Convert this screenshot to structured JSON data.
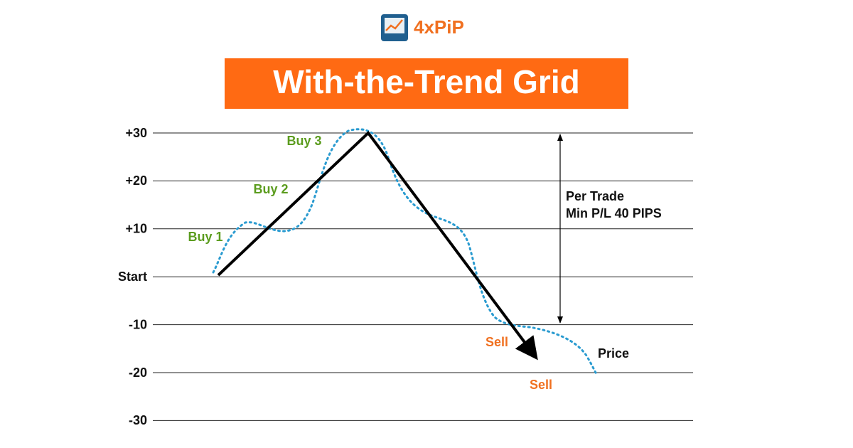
{
  "logo": {
    "text": "4xPiP"
  },
  "title": "With-the-Trend Grid",
  "levels": [
    "+30",
    "+20",
    "+10",
    "Start",
    "-10",
    "-20",
    "-30"
  ],
  "buy_labels": [
    "Buy 1",
    "Buy 2",
    "Buy 3"
  ],
  "sell_labels": [
    "Sell",
    "Sell"
  ],
  "price_label": "Price",
  "range_note": [
    "Per Trade",
    "Min P/L 40 PIPS"
  ]
}
